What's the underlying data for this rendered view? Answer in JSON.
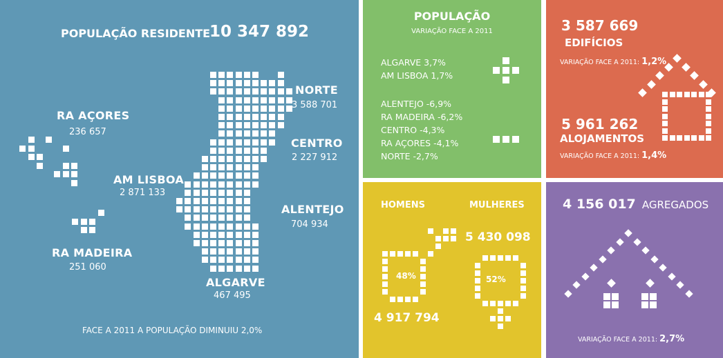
{
  "blue": {
    "title": "POPULAÇÃO RESIDENTE",
    "total": "10 347 892",
    "regions": {
      "norte": {
        "name": "NORTE",
        "value": "3 588 701"
      },
      "centro": {
        "name": "CENTRO",
        "value": "2 227 912"
      },
      "alentejo": {
        "name": "ALENTEJO",
        "value": "704 934"
      },
      "algarve": {
        "name": "ALGARVE",
        "value": "467 495"
      },
      "lisboa": {
        "name": "AM LISBOA",
        "value": "2 871 133"
      },
      "acores": {
        "name": "RA AÇORES",
        "value": "236 657"
      },
      "madeira": {
        "name": "RA MADEIRA",
        "value": "251 060"
      }
    },
    "footnote": "FACE A 2011 A POPULAÇÃO DIMINUIU 2,0%"
  },
  "green": {
    "title": "POPULAÇÃO",
    "subtitle": "VARIAÇÃO FACE A 2011",
    "positive": [
      "ALGARVE  3,7%",
      "AM LISBOA  1,7%"
    ],
    "negative": [
      "ALENTEJO  -6,9%",
      "RA MADEIRA  -6,2%",
      "CENTRO  -4,3%",
      "RA AÇORES  -4,1%",
      "NORTE  -2,7%"
    ]
  },
  "red": {
    "buildings_value": "3 587 669",
    "buildings_label": "EDIFÍCIOS",
    "buildings_var_label": "VARIAÇÃO FACE A 2011:",
    "buildings_var_value": "1,2%",
    "dwellings_value": "5 961 262",
    "dwellings_label": "ALOJAMENTOS",
    "dwellings_var_label": "VARIAÇÃO FACE A 2011:",
    "dwellings_var_value": "1,4%"
  },
  "yellow": {
    "men_label": "HOMENS",
    "women_label": "MULHERES",
    "men_pct": "48%",
    "women_pct": "52%",
    "men_value": "4 917 794",
    "women_value": "5 430 098"
  },
  "purple": {
    "households_value": "4 156 017",
    "households_label": "AGREGADOS",
    "var_label": "VARIAÇÃO FACE A 2011:",
    "var_value": "2,7%"
  },
  "colors": {
    "blue": "#5f98b5",
    "green": "#82bf6a",
    "red": "#dc6b4f",
    "yellow": "#e2c42c",
    "purple": "#8a71ae"
  },
  "icons": [
    "portugal-map-icon",
    "plus-icon",
    "minus-icon",
    "house-icon",
    "male-symbol-icon",
    "female-symbol-icon",
    "households-icon"
  ]
}
